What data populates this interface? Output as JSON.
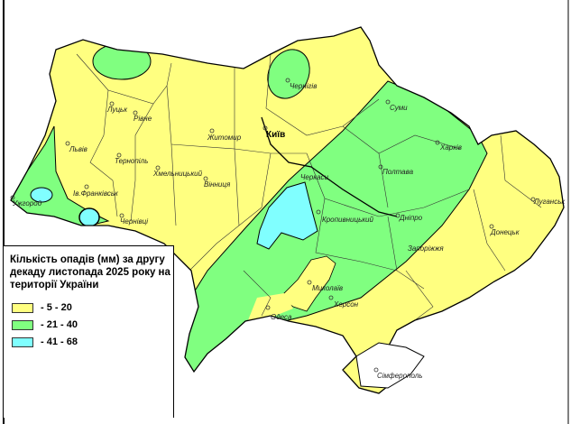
{
  "legend": {
    "title": "Кількість опадів (мм) за другу декаду листопада 2025 року на території України",
    "items": [
      {
        "label": "- 5 - 20",
        "color": "#FFFF80"
      },
      {
        "label": "- 21 - 40",
        "color": "#80FF80"
      },
      {
        "label": "- 41 - 68",
        "color": "#80FFFF"
      }
    ]
  },
  "cities": {
    "lutsk": "Луцьк",
    "rivne": "Рівне",
    "lviv": "Львів",
    "ternopil": "Тернопіль",
    "khmelnytskyi": "Хмельницький",
    "zhytomyr": "Житомир",
    "kyiv": "Київ",
    "vinnytsia": "Вінниця",
    "ivano_frankivsk": "Ів.Франківськ",
    "uzhhorod": "Ужгород",
    "chernivtsi": "Чернівці",
    "chernihiv": "Чернігів",
    "sumy": "Суми",
    "kharkiv": "Харків",
    "poltava": "Полтава",
    "cherkasy": "Черкаси",
    "kropyvnytskyi": "Кропивницький",
    "dnipro": "Дніпро",
    "zaporizhzhia": "Запоріжжя",
    "luhansk": "Луганськ",
    "donetsk": "Донецьк",
    "mykolaiv": "Миколаїв",
    "kherson": "Херсон",
    "odesa": "Одеса",
    "simferopol": "Сімферополь"
  }
}
